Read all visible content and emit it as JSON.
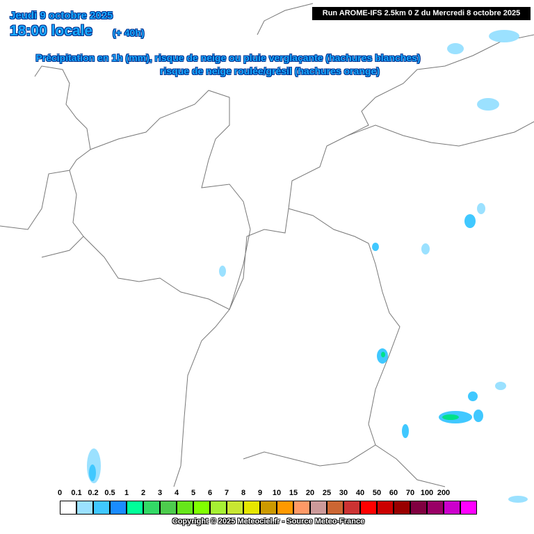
{
  "header": {
    "date": "Jeudi 9 octobre 2025",
    "time": "18:00 locale",
    "lead_time": "(+ 40h)",
    "subtitle_1": "Précipitation en 1h (mm), risque de neige ou pluie verglaçante (hachures blanches)",
    "subtitle_2": "risque de neige roulée/grésil (hachures orange)",
    "run": "Run AROME-IFS 2.5km 0 Z du Mercredi 8 octobre 2025"
  },
  "legend": {
    "items": [
      {
        "label": "0",
        "color": "#ffffff"
      },
      {
        "label": "0.1",
        "color": "#9be1ff"
      },
      {
        "label": "0.2",
        "color": "#40c8ff"
      },
      {
        "label": "0.5",
        "color": "#1a8cff"
      },
      {
        "label": "1",
        "color": "#00ff99"
      },
      {
        "label": "2",
        "color": "#33d966"
      },
      {
        "label": "3",
        "color": "#4dcc4d"
      },
      {
        "label": "4",
        "color": "#66e61a"
      },
      {
        "label": "5",
        "color": "#80ff00"
      },
      {
        "label": "6",
        "color": "#a6f033"
      },
      {
        "label": "7",
        "color": "#c8e632"
      },
      {
        "label": "8",
        "color": "#e6e600"
      },
      {
        "label": "9",
        "color": "#cc9900"
      },
      {
        "label": "10",
        "color": "#ff9900"
      },
      {
        "label": "15",
        "color": "#ff9966"
      },
      {
        "label": "20",
        "color": "#cc9999"
      },
      {
        "label": "25",
        "color": "#cc6633"
      },
      {
        "label": "30",
        "color": "#cc3333"
      },
      {
        "label": "40",
        "color": "#ff0000"
      },
      {
        "label": "50",
        "color": "#cc0000"
      },
      {
        "label": "60",
        "color": "#990000"
      },
      {
        "label": "70",
        "color": "#800040"
      },
      {
        "label": "100",
        "color": "#990066"
      },
      {
        "label": "200",
        "color": "#cc00cc"
      }
    ],
    "end_color": "#ff00ff"
  },
  "footer": {
    "copyright": "Copyright © 2025 Meteociel.fr - Source Meteo-France"
  }
}
